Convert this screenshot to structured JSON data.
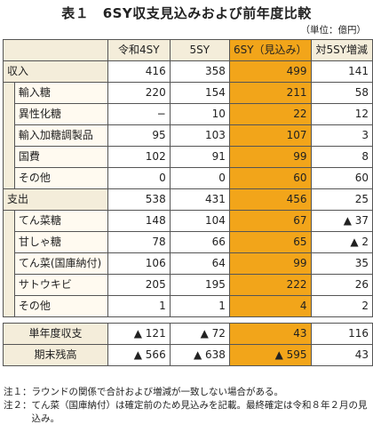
{
  "title": "表１　6SY収支見込みおよび前年度比較",
  "unit": "（単位：億円）",
  "columns": [
    "令和4SY",
    "5SY",
    "6SY（見込み）",
    "対5SY増減"
  ],
  "sections": [
    {
      "label": "収入",
      "values": [
        "416",
        "358",
        "499",
        "141"
      ],
      "items": [
        {
          "label": "輸入糖",
          "values": [
            "220",
            "154",
            "211",
            "58"
          ]
        },
        {
          "label": "異性化糖",
          "values": [
            "−",
            "10",
            "22",
            "12"
          ]
        },
        {
          "label": "輸入加糖調製品",
          "values": [
            "95",
            "103",
            "107",
            "3"
          ]
        },
        {
          "label": "国費",
          "values": [
            "102",
            "91",
            "99",
            "8"
          ]
        },
        {
          "label": "その他",
          "values": [
            "0",
            "0",
            "60",
            "60"
          ]
        }
      ]
    },
    {
      "label": "支出",
      "values": [
        "538",
        "431",
        "456",
        "25"
      ],
      "items": [
        {
          "label": "てん菜糖",
          "values": [
            "148",
            "104",
            "67",
            "▲ 37"
          ]
        },
        {
          "label": "甘しゃ糖",
          "values": [
            "78",
            "66",
            "65",
            "▲ 2"
          ]
        },
        {
          "label": "てん菜(国庫納付)",
          "values": [
            "106",
            "64",
            "99",
            "35"
          ]
        },
        {
          "label": "サトウキビ",
          "values": [
            "205",
            "195",
            "222",
            "26"
          ]
        },
        {
          "label": "その他",
          "values": [
            "1",
            "1",
            "4",
            "2"
          ]
        }
      ]
    }
  ],
  "totals": [
    {
      "label": "単年度収支",
      "values": [
        "▲ 121",
        "▲ 72",
        "43",
        "116"
      ]
    },
    {
      "label": "期末残高",
      "values": [
        "▲ 566",
        "▲ 638",
        "▲ 595",
        "43"
      ]
    }
  ],
  "notes": [
    {
      "key": "注１：",
      "text": "ラウンドの関係で合計および増減が一致しない場合がある。"
    },
    {
      "key": "注２：",
      "text": "てん菜（国庫納付）は確定前のため見込みを記載。最終確定は令和８年２月の見込み。"
    }
  ],
  "colors": {
    "highlight": "#f2a51a",
    "label_bg": "#f4edda"
  }
}
